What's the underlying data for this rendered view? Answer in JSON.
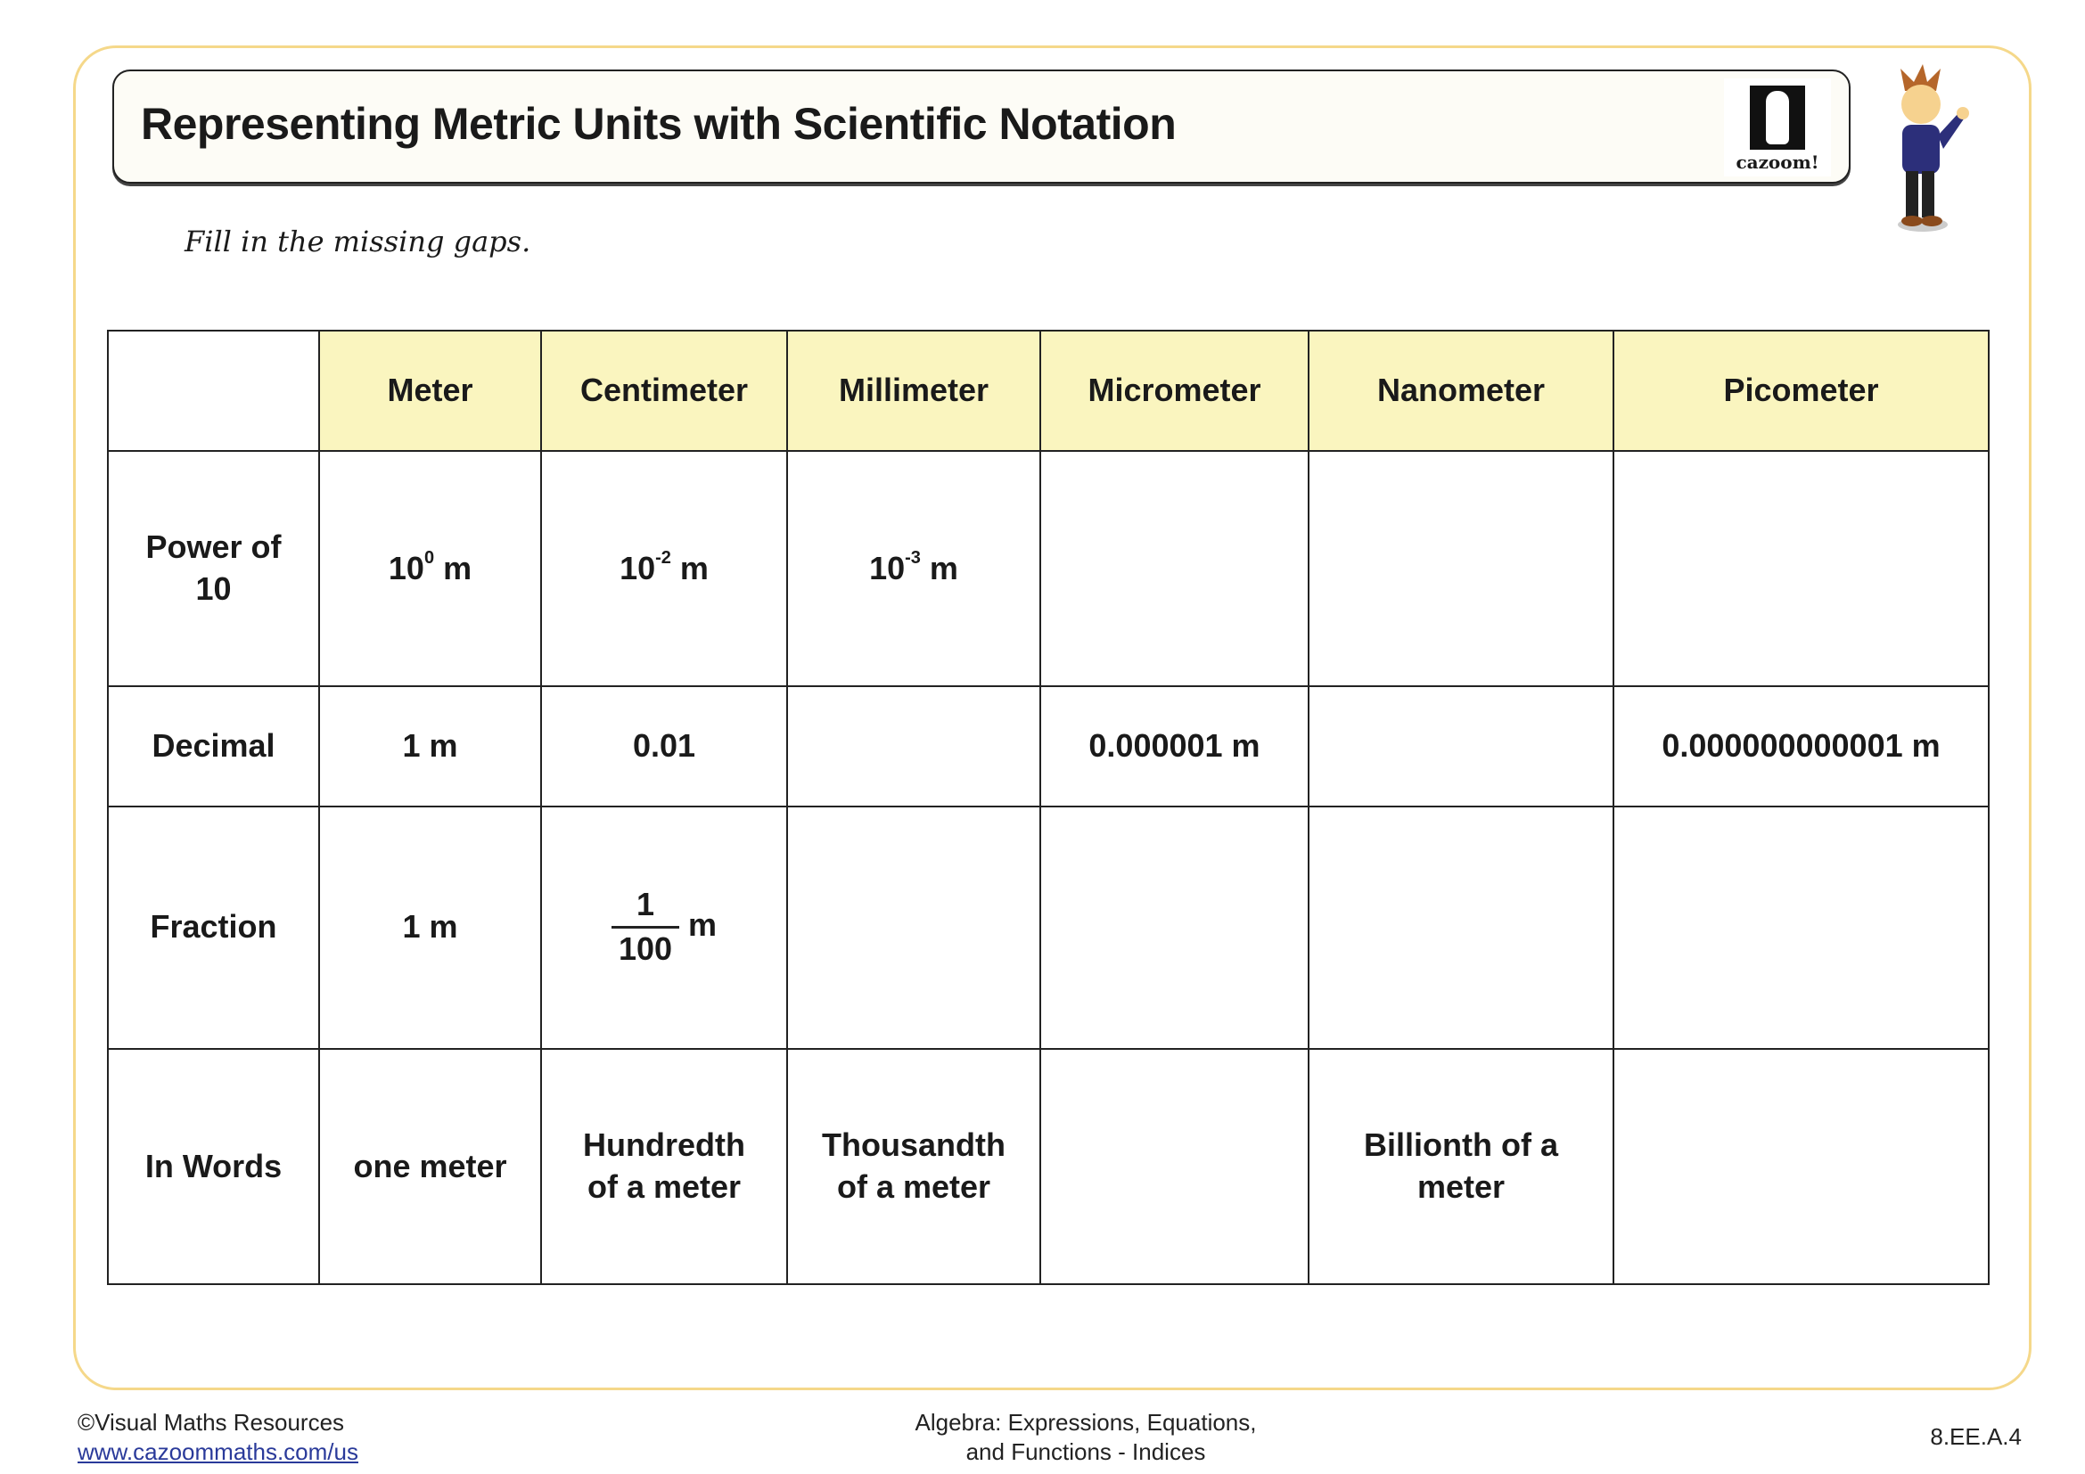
{
  "title": "Representing Metric Units with Scientific Notation",
  "logo_text": "cazoom!",
  "instruction": "Fill in the missing gaps.",
  "table": {
    "headers": [
      "",
      "Meter",
      "Centimeter",
      "Millimeter",
      "Micrometer",
      "Nanometer",
      "Picometer"
    ],
    "rows": [
      {
        "label": "Power of 10",
        "cells": [
          {
            "base": "10",
            "exp": "0",
            "unit": " m"
          },
          {
            "base": "10",
            "exp": "-2",
            "unit": " m"
          },
          {
            "base": "10",
            "exp": "-3",
            "unit": " m"
          },
          {},
          {},
          {}
        ]
      },
      {
        "label": "Decimal",
        "cells": [
          "1 m",
          "0.01",
          "",
          "0.000001 m",
          "",
          "0.000000000001 m"
        ]
      },
      {
        "label": "Fraction",
        "cells": [
          "1 m",
          {
            "num": "1",
            "den": "100",
            "unit": "m"
          },
          "",
          "",
          "",
          ""
        ]
      },
      {
        "label": "In Words",
        "cells": [
          "one meter",
          "Hundredth of a meter",
          "Thousandth of a meter",
          "",
          "Billionth of a meter",
          ""
        ]
      }
    ]
  },
  "footer": {
    "copyright": "©Visual Maths Resources",
    "link": "www.cazoommaths.com/us",
    "topic_line1": "Algebra: Expressions, Equations,",
    "topic_line2": "and Functions - Indices",
    "standard": "8.EE.A.4"
  },
  "colors": {
    "frame": "#f5d88a",
    "header_fill": "#faf5bf",
    "link": "#2a3a9a"
  }
}
